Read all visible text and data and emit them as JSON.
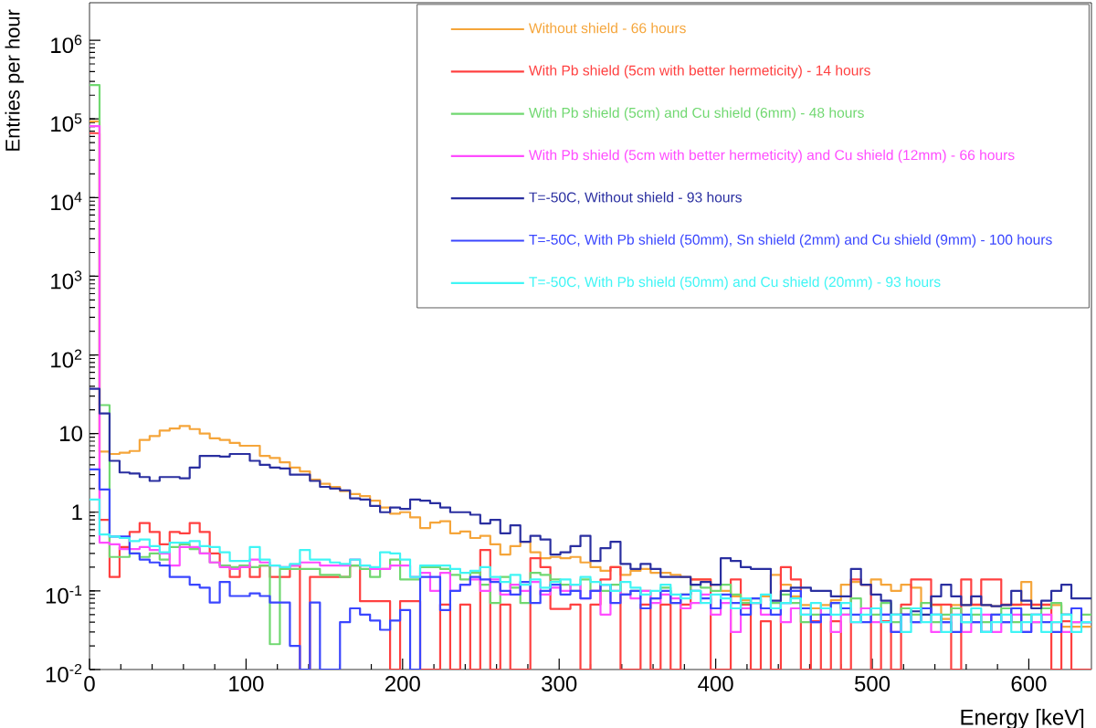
{
  "chart_data": {
    "type": "histogram",
    "xlabel": "Energy [keV]",
    "ylabel": "Entries per hour",
    "log": "y",
    "legend": "top right",
    "xlim": [
      0,
      640
    ],
    "ylim": [
      0.01,
      3000000
    ],
    "xticks": [
      0,
      100,
      200,
      300,
      400,
      500,
      600
    ],
    "yticks": [
      {
        "value": 0.01,
        "label": "10$^{-2}$"
      },
      {
        "value": 0.1,
        "label": "10$^{-1}$"
      },
      1,
      10,
      {
        "value": 100,
        "label": "10$^{2}$"
      },
      {
        "value": 1000,
        "label": "10$^{3}$"
      },
      {
        "value": 10000,
        "label": "10$^{4}$"
      },
      {
        "value": 100000,
        "label": "10$^{5}$"
      },
      {
        "value": 1000000,
        "label": "10$^{6}$"
      }
    ],
    "bins": [
      0,
      6.4,
      12.8,
      19.2,
      25.6,
      32,
      38.4,
      44.8,
      51.2,
      57.6,
      64,
      70.4,
      76.8,
      83.2,
      89.6,
      96,
      102.4,
      108.8,
      115.2,
      121.6,
      128,
      134.4,
      140.8,
      147.2,
      153.6,
      160,
      166.4,
      172.8,
      179.2,
      185.6,
      192,
      198.4,
      204.8,
      211.2,
      217.6,
      224,
      230.4,
      236.8,
      243.2,
      249.6,
      256,
      262.4,
      268.8,
      275.2,
      281.6,
      288,
      294.4,
      300.8,
      307.2,
      313.6,
      320,
      326.4,
      332.8,
      339.2,
      345.6,
      352,
      358.4,
      364.8,
      371.2,
      377.6,
      384,
      390.4,
      396.8,
      403.2,
      409.6,
      416,
      422.4,
      428.8,
      435.2,
      441.6,
      448,
      454.4,
      460.8,
      467.2,
      473.6,
      480,
      486.4,
      492.8,
      499.2,
      505.6,
      512,
      518.4,
      524.8,
      531.2,
      537.6,
      544,
      550.4,
      556.8,
      563.2,
      569.6,
      576,
      582.4,
      588.8,
      595.2,
      601.6,
      608,
      614.4,
      620.8,
      627.2,
      633.6,
      640
    ],
    "series": [
      {
        "name": "Without shield - 66 hours",
        "color": "#f5a53a",
        "values": [
          93000,
          5.9,
          5.5,
          5.7,
          6.0,
          8.3,
          9.3,
          10.9,
          11.6,
          12.5,
          11.4,
          10.0,
          8.7,
          8.3,
          7.6,
          7.0,
          7.0,
          5.2,
          4.9,
          4.3,
          3.7,
          3.3,
          2.6,
          2.3,
          2.1,
          1.85,
          1.7,
          1.6,
          1.4,
          1.15,
          0.96,
          1.0,
          0.86,
          0.63,
          0.74,
          0.77,
          0.54,
          0.57,
          0.47,
          0.5,
          0.39,
          0.29,
          0.37,
          0.42,
          0.31,
          0.26,
          0.27,
          0.26,
          0.27,
          0.23,
          0.2,
          0.18,
          0.2,
          0.16,
          0.18,
          0.19,
          0.17,
          0.17,
          0.16,
          0.15,
          0.14,
          0.14,
          0.12,
          0.1,
          0.085,
          0.076,
          0.07,
          0.085,
          0.16,
          0.12,
          0.085,
          0.066,
          0.06,
          0.066,
          0.076,
          0.12,
          0.13,
          0.12,
          0.14,
          0.12,
          0.1,
          0.12,
          0.11,
          0.06,
          0.066,
          0.044,
          0.066,
          0.066,
          0.066,
          0.066,
          0.064,
          0.066,
          0.066,
          0.13,
          0.066,
          0.066,
          0.066,
          0.035,
          0.035,
          0.035
        ]
      },
      {
        "name": "With Pb shield (5cm with better hermeticity) - 14 hours",
        "color": "#ff4040",
        "values": [
          66000,
          0.8,
          0.15,
          0.36,
          0.56,
          0.73,
          0.56,
          0.39,
          0.56,
          0.54,
          0.73,
          0.56,
          0.3,
          0.21,
          0.15,
          0.21,
          0.15,
          0.21,
          0.15,
          0.15,
          0.21,
          0.01,
          0.15,
          0.15,
          0.15,
          0.15,
          0.21,
          0.074,
          0.074,
          0.074,
          0.01,
          0.074,
          0.074,
          0.01,
          0.01,
          0.067,
          0.01,
          0.067,
          0.01,
          0.33,
          0.01,
          0.067,
          0.01,
          0.01,
          0.26,
          0.2,
          0.059,
          0.059,
          0.067,
          0.01,
          0.067,
          0.14,
          0.2,
          0.01,
          0.01,
          0.067,
          0.01,
          0.067,
          0.01,
          0.067,
          0.14,
          0.14,
          0.01,
          0.01,
          0.14,
          0.067,
          0.01,
          0.041,
          0.01,
          0.2,
          0.14,
          0.01,
          0.041,
          0.01,
          0.041,
          0.01,
          0.14,
          0.12,
          0.01,
          0.041,
          0.01,
          0.067,
          0.14,
          0.14,
          0.067,
          0.067,
          0.01,
          0.14,
          0.067,
          0.14,
          0.14,
          0.067,
          0.067,
          0.067,
          0.067,
          0.067,
          0.01,
          0.041,
          0.01,
          0.01
        ]
      },
      {
        "name": "With Pb shield (5cm) and Cu shield (6mm) - 48 hours",
        "color": "#70d870",
        "values": [
          270000,
          23,
          0.27,
          0.27,
          0.3,
          0.27,
          0.3,
          0.25,
          0.36,
          0.39,
          0.34,
          0.3,
          0.23,
          0.21,
          0.2,
          0.21,
          0.2,
          0.21,
          0.021,
          0.19,
          0.19,
          0.19,
          0.19,
          0.16,
          0.16,
          0.15,
          0.21,
          0.19,
          0.15,
          0.19,
          0.25,
          0.14,
          0.14,
          0.2,
          0.2,
          0.19,
          0.16,
          0.14,
          0.17,
          0.12,
          0.07,
          0.15,
          0.11,
          0.07,
          0.17,
          0.16,
          0.14,
          0.12,
          0.1,
          0.14,
          0.1,
          0.1,
          0.12,
          0.09,
          0.1,
          0.1,
          0.08,
          0.11,
          0.07,
          0.09,
          0.12,
          0.11,
          0.1,
          0.12,
          0.09,
          0.07,
          0.08,
          0.06,
          0.07,
          0.09,
          0.07,
          0.04,
          0.05,
          0.06,
          0.07,
          0.05,
          0.08,
          0.06,
          0.05,
          0.07,
          0.04,
          0.06,
          0.05,
          0.07,
          0.04,
          0.05,
          0.06,
          0.04,
          0.05,
          0.04,
          0.05,
          0.06,
          0.04,
          0.05,
          0.04,
          0.06,
          0.07,
          0.05,
          0.04,
          0.05
        ]
      },
      {
        "name": "With Pb shield (5cm with better hermeticity) and Cu shield (12mm) - 66 hours",
        "color": "#ff4cff",
        "values": [
          81000,
          0.41,
          0.39,
          0.34,
          0.34,
          0.36,
          0.33,
          0.3,
          0.21,
          0.36,
          0.36,
          0.3,
          0.23,
          0.2,
          0.19,
          0.2,
          0.25,
          0.23,
          0.21,
          0.2,
          0.21,
          0.23,
          0.23,
          0.21,
          0.21,
          0.21,
          0.25,
          0.21,
          0.19,
          0.19,
          0.21,
          0.21,
          0.15,
          0.17,
          0.1,
          0.17,
          0.1,
          0.12,
          0.14,
          0.1,
          0.14,
          0.09,
          0.12,
          0.1,
          0.13,
          0.09,
          0.11,
          0.1,
          0.12,
          0.08,
          0.1,
          0.05,
          0.1,
          0.09,
          0.08,
          0.1,
          0.07,
          0.09,
          0.08,
          0.06,
          0.07,
          0.09,
          0.05,
          0.07,
          0.03,
          0.06,
          0.07,
          0.05,
          0.06,
          0.04,
          0.06,
          0.05,
          0.04,
          0.06,
          0.03,
          0.05,
          0.04,
          0.06,
          0.04,
          0.05,
          0.03,
          0.05,
          0.04,
          0.06,
          0.03,
          0.04,
          0.05,
          0.03,
          0.04,
          0.05,
          0.03,
          0.04,
          0.05,
          0.03,
          0.04,
          0.05,
          0.04,
          0.03,
          0.04,
          0.04
        ]
      },
      {
        "name": "T=-50C, Without shield - 93 hours",
        "color": "#2a2fa0",
        "values": [
          37,
          18,
          4.5,
          3.2,
          3.1,
          2.8,
          2.5,
          2.8,
          2.8,
          2.7,
          3.7,
          5.2,
          5.2,
          5.1,
          5.5,
          5.5,
          4.5,
          4.0,
          3.7,
          3.6,
          3.0,
          3.0,
          2.5,
          2.1,
          2.0,
          1.9,
          1.5,
          1.45,
          1.2,
          1.0,
          1.15,
          1.1,
          1.45,
          1.4,
          1.3,
          1.15,
          1.0,
          1.0,
          0.93,
          0.72,
          0.8,
          0.54,
          0.68,
          0.42,
          0.5,
          0.45,
          0.29,
          0.31,
          0.37,
          0.5,
          0.24,
          0.35,
          0.42,
          0.22,
          0.19,
          0.22,
          0.19,
          0.15,
          0.15,
          0.15,
          0.12,
          0.13,
          0.12,
          0.26,
          0.24,
          0.2,
          0.19,
          0.19,
          0.075,
          0.1,
          0.11,
          0.11,
          0.1,
          0.1,
          0.085,
          0.085,
          0.19,
          0.12,
          0.09,
          0.075,
          0.05,
          0.05,
          0.055,
          0.05,
          0.085,
          0.12,
          0.085,
          0.066,
          0.085,
          0.066,
          0.064,
          0.066,
          0.1,
          0.075,
          0.06,
          0.075,
          0.1,
          0.12,
          0.08,
          0.08
        ]
      },
      {
        "name": "T=-50C, With Pb shield (50mm), Sn shield (2mm) and Cu shield (9mm) - 100 hours",
        "color": "#3a46ff",
        "values": [
          3.5,
          1.95,
          0.49,
          0.49,
          0.3,
          0.25,
          0.23,
          0.21,
          0.15,
          0.15,
          0.12,
          0.11,
          0.071,
          0.13,
          0.086,
          0.086,
          0.093,
          0.086,
          0.071,
          0.071,
          0.02,
          0.01,
          0.071,
          0.01,
          0.01,
          0.04,
          0.06,
          0.05,
          0.042,
          0.032,
          0.042,
          0.057,
          0.01,
          0.15,
          0.15,
          0.057,
          0.1,
          0.12,
          0.15,
          0.14,
          0.13,
          0.1,
          0.09,
          0.13,
          0.07,
          0.1,
          0.12,
          0.09,
          0.1,
          0.08,
          0.1,
          0.12,
          0.07,
          0.09,
          0.1,
          0.06,
          0.08,
          0.1,
          0.07,
          0.09,
          0.1,
          0.08,
          0.06,
          0.09,
          0.07,
          0.05,
          0.08,
          0.06,
          0.05,
          0.07,
          0.1,
          0.06,
          0.04,
          0.05,
          0.07,
          0.06,
          0.05,
          0.04,
          0.06,
          0.05,
          0.03,
          0.05,
          0.04,
          0.06,
          0.05,
          0.04,
          0.03,
          0.05,
          0.04,
          0.03,
          0.05,
          0.04,
          0.06,
          0.03,
          0.05,
          0.04,
          0.03,
          0.05,
          0.06,
          0.04
        ]
      },
      {
        "name": "T=-50C, With Pb shield (50mm) and Cu shield (20mm) - 93 hours",
        "color": "#40f5f5",
        "values": [
          1.45,
          0.52,
          0.49,
          0.47,
          0.43,
          0.45,
          0.37,
          0.31,
          0.41,
          0.41,
          0.43,
          0.37,
          0.36,
          0.31,
          0.24,
          0.24,
          0.36,
          0.25,
          0.21,
          0.2,
          0.22,
          0.33,
          0.25,
          0.25,
          0.23,
          0.22,
          0.25,
          0.21,
          0.2,
          0.31,
          0.3,
          0.25,
          0.15,
          0.21,
          0.21,
          0.21,
          0.19,
          0.17,
          0.18,
          0.2,
          0.15,
          0.13,
          0.16,
          0.12,
          0.14,
          0.11,
          0.13,
          0.14,
          0.12,
          0.15,
          0.13,
          0.12,
          0.1,
          0.13,
          0.11,
          0.09,
          0.1,
          0.12,
          0.09,
          0.08,
          0.1,
          0.07,
          0.09,
          0.08,
          0.06,
          0.08,
          0.07,
          0.09,
          0.06,
          0.07,
          0.08,
          0.05,
          0.07,
          0.06,
          0.05,
          0.07,
          0.04,
          0.05,
          0.06,
          0.04,
          0.05,
          0.03,
          0.06,
          0.04,
          0.05,
          0.03,
          0.05,
          0.04,
          0.06,
          0.03,
          0.04,
          0.05,
          0.03,
          0.04,
          0.05,
          0.03,
          0.04,
          0.05,
          0.03,
          0.04
        ]
      }
    ]
  }
}
